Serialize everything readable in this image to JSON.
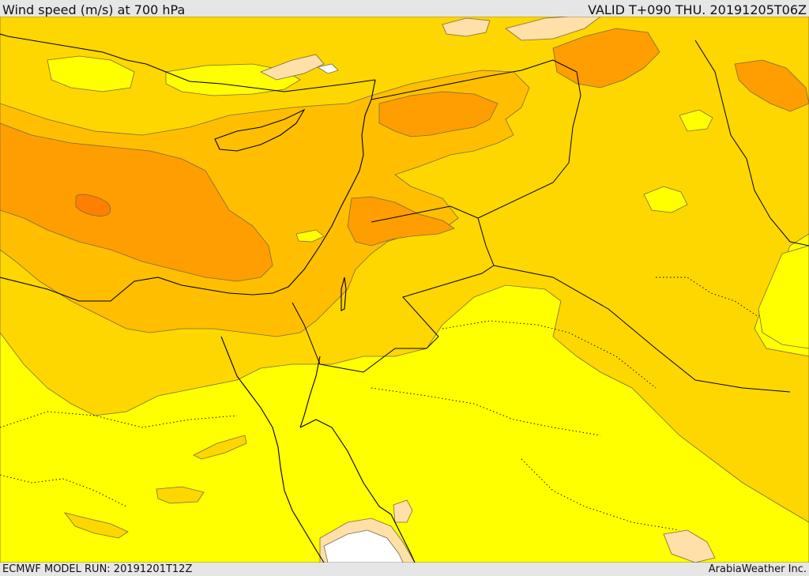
{
  "header": {
    "title": "Wind speed (m/s) at 700 hPa",
    "valid_time": "VALID T+090 THU. 20191205T06Z"
  },
  "footer": {
    "model_run": "ECMWF MODEL RUN: 20191201T12Z",
    "credit": "ArabiaWeather Inc."
  },
  "map": {
    "colors": {
      "background": "#e6e6e6",
      "lowest_band": "#ffffff",
      "very_low_band": "#ffe0a8",
      "low_band": "#ffff00",
      "mid_band": "#ffd700",
      "upper_mid_band": "#ffbf00",
      "high_band": "#ff9e00",
      "highest_band": "#ff8000",
      "coastline": "#000000",
      "border": "#000000",
      "contour_line": "#7a6a40"
    }
  }
}
